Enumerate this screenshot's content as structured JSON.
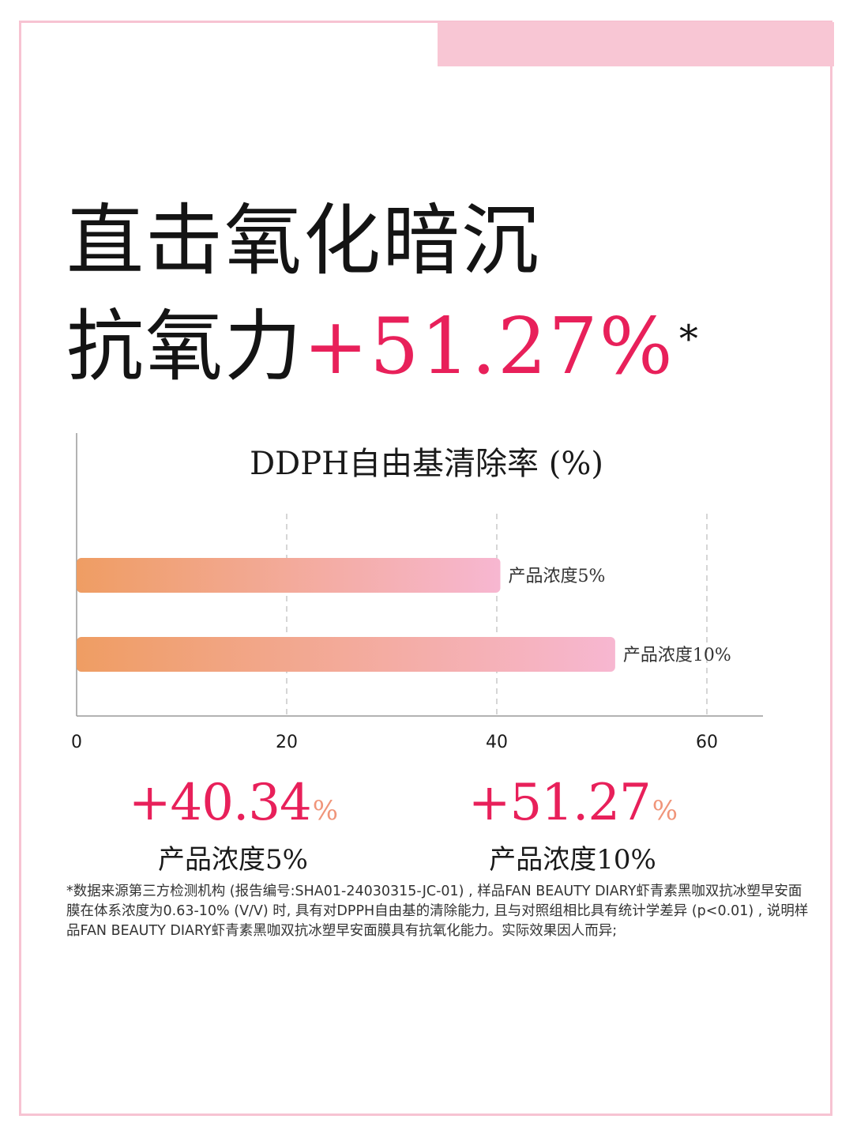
{
  "colors": {
    "accent": "#e8205a",
    "percent_sign": "#f0957a",
    "bar_gradient_start": "#ef9d63",
    "bar_gradient_end": "#f7b7d1",
    "frame": "#f7c3d2"
  },
  "headline": {
    "line1": "直击氧化暗沉",
    "line2_prefix": "抗氧力",
    "line2_value": "+51.27%",
    "line2_mark": "*"
  },
  "chart_data": {
    "type": "bar",
    "orientation": "horizontal",
    "title": "DDPH自由基清除率 (%)",
    "categories": [
      "产品浓度5%",
      "产品浓度10%"
    ],
    "values": [
      40.34,
      51.27
    ],
    "xlim": [
      0,
      65
    ],
    "ticks": [
      0,
      20,
      40,
      60
    ],
    "grid": "dashed vertical",
    "data_labels": [
      "产品浓度5%",
      "产品浓度10%"
    ]
  },
  "stats": [
    {
      "value": "+40.34",
      "unit": "%",
      "caption": "产品浓度5%"
    },
    {
      "value": "+51.27",
      "unit": "%",
      "caption": "产品浓度10%"
    }
  ],
  "footnote": "*数据来源第三方检测机构 (报告编号:SHA01-24030315-JC-01) , 样品FAN BEAUTY DIARY虾青素黑咖双抗冰塑早安面膜在体系浓度为0.63-10% (V/V) 时, 具有对DPPH自由基的清除能力, 且与对照组相比具有统计学差异 (p<0.01) , 说明样品FAN BEAUTY DIARY虾青素黑咖双抗冰塑早安面膜具有抗氧化能力。实际效果因人而异;"
}
